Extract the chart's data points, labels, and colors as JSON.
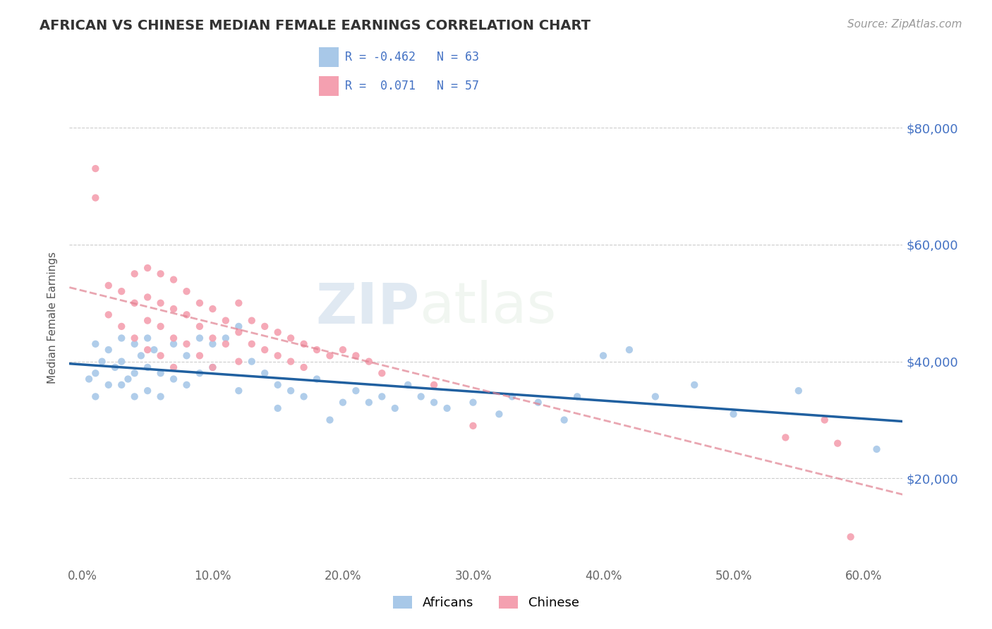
{
  "title": "AFRICAN VS CHINESE MEDIAN FEMALE EARNINGS CORRELATION CHART",
  "source": "Source: ZipAtlas.com",
  "ylabel": "Median Female Earnings",
  "xlabel_ticks": [
    "0.0%",
    "10.0%",
    "20.0%",
    "30.0%",
    "40.0%",
    "50.0%",
    "60.0%"
  ],
  "xlabel_vals": [
    0.0,
    0.1,
    0.2,
    0.3,
    0.4,
    0.5,
    0.6
  ],
  "ytick_labels": [
    "$20,000",
    "$40,000",
    "$60,000",
    "$80,000"
  ],
  "ytick_vals": [
    20000,
    40000,
    60000,
    80000
  ],
  "ylim": [
    5000,
    90000
  ],
  "xlim": [
    -0.01,
    0.63
  ],
  "legend_r": [
    -0.462,
    0.071
  ],
  "legend_n": [
    63,
    57
  ],
  "african_color": "#a8c8e8",
  "chinese_color": "#f4a0b0",
  "african_line_color": "#2060a0",
  "chinese_line_color": "#e08090",
  "watermark_zip": "ZIP",
  "watermark_atlas": "atlas",
  "africans_x": [
    0.005,
    0.01,
    0.01,
    0.01,
    0.015,
    0.02,
    0.02,
    0.025,
    0.03,
    0.03,
    0.03,
    0.035,
    0.04,
    0.04,
    0.04,
    0.045,
    0.05,
    0.05,
    0.05,
    0.055,
    0.06,
    0.06,
    0.07,
    0.07,
    0.08,
    0.08,
    0.09,
    0.09,
    0.1,
    0.1,
    0.11,
    0.12,
    0.12,
    0.13,
    0.14,
    0.15,
    0.15,
    0.16,
    0.17,
    0.18,
    0.19,
    0.2,
    0.21,
    0.22,
    0.23,
    0.24,
    0.25,
    0.26,
    0.27,
    0.28,
    0.3,
    0.32,
    0.33,
    0.35,
    0.37,
    0.38,
    0.4,
    0.42,
    0.44,
    0.47,
    0.5,
    0.55,
    0.61
  ],
  "africans_y": [
    37000,
    43000,
    38000,
    34000,
    40000,
    42000,
    36000,
    39000,
    44000,
    40000,
    36000,
    37000,
    43000,
    38000,
    34000,
    41000,
    44000,
    39000,
    35000,
    42000,
    38000,
    34000,
    43000,
    37000,
    41000,
    36000,
    44000,
    38000,
    43000,
    39000,
    44000,
    46000,
    35000,
    40000,
    38000,
    36000,
    32000,
    35000,
    34000,
    37000,
    30000,
    33000,
    35000,
    33000,
    34000,
    32000,
    36000,
    34000,
    33000,
    32000,
    33000,
    31000,
    34000,
    33000,
    30000,
    34000,
    41000,
    42000,
    34000,
    36000,
    31000,
    35000,
    25000
  ],
  "chinese_x": [
    0.01,
    0.01,
    0.02,
    0.02,
    0.03,
    0.03,
    0.04,
    0.04,
    0.04,
    0.05,
    0.05,
    0.05,
    0.05,
    0.06,
    0.06,
    0.06,
    0.06,
    0.07,
    0.07,
    0.07,
    0.07,
    0.08,
    0.08,
    0.08,
    0.09,
    0.09,
    0.09,
    0.1,
    0.1,
    0.1,
    0.11,
    0.11,
    0.12,
    0.12,
    0.12,
    0.13,
    0.13,
    0.14,
    0.14,
    0.15,
    0.15,
    0.16,
    0.16,
    0.17,
    0.17,
    0.18,
    0.19,
    0.2,
    0.21,
    0.22,
    0.23,
    0.27,
    0.3,
    0.54,
    0.57,
    0.58,
    0.59
  ],
  "chinese_y": [
    68000,
    73000,
    53000,
    48000,
    52000,
    46000,
    55000,
    50000,
    44000,
    56000,
    51000,
    47000,
    42000,
    55000,
    50000,
    46000,
    41000,
    54000,
    49000,
    44000,
    39000,
    52000,
    48000,
    43000,
    50000,
    46000,
    41000,
    49000,
    44000,
    39000,
    47000,
    43000,
    50000,
    45000,
    40000,
    47000,
    43000,
    46000,
    42000,
    45000,
    41000,
    44000,
    40000,
    43000,
    39000,
    42000,
    41000,
    42000,
    41000,
    40000,
    38000,
    36000,
    29000,
    27000,
    30000,
    26000,
    10000
  ]
}
